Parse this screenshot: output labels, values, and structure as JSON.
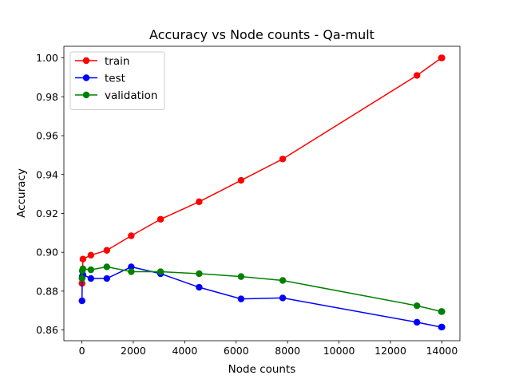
{
  "chart_data": {
    "type": "line",
    "title": "Accuracy vs Node counts - Qa-mult",
    "xlabel": "Node counts",
    "ylabel": "Accuracy",
    "xlim": [
      -700,
      14700
    ],
    "ylim": [
      0.8545,
      1.006
    ],
    "xticks": [
      0,
      2000,
      4000,
      6000,
      8000,
      10000,
      12000,
      14000
    ],
    "yticks": [
      0.86,
      0.88,
      0.9,
      0.92,
      0.94,
      0.96,
      0.98,
      1.0
    ],
    "xtick_labels": [
      "0",
      "2000",
      "4000",
      "6000",
      "8000",
      "10000",
      "12000",
      "14000"
    ],
    "ytick_labels": [
      "0.86",
      "0.88",
      "0.90",
      "0.92",
      "0.94",
      "0.96",
      "0.98",
      "1.00"
    ],
    "grid": false,
    "legend_position": "top-left",
    "series": [
      {
        "name": "train",
        "color": "#ff0000",
        "x": [
          5,
          15,
          40,
          350,
          970,
          1920,
          3060,
          4560,
          6190,
          7810,
          13030,
          13980,
          14000
        ],
        "y": [
          0.884,
          0.887,
          0.8965,
          0.8985,
          0.901,
          0.9085,
          0.917,
          0.926,
          0.937,
          0.948,
          0.991,
          1.0,
          1.0
        ]
      },
      {
        "name": "test",
        "color": "#0000ff",
        "x": [
          5,
          15,
          40,
          350,
          970,
          1920,
          3060,
          4560,
          6190,
          7810,
          13030,
          13980,
          14000
        ],
        "y": [
          0.875,
          0.8875,
          0.8885,
          0.8865,
          0.8865,
          0.8925,
          0.889,
          0.882,
          0.876,
          0.8765,
          0.864,
          0.8615,
          0.8615
        ]
      },
      {
        "name": "validation",
        "color": "#008000",
        "x": [
          5,
          15,
          40,
          350,
          970,
          1920,
          3060,
          4560,
          6190,
          7810,
          13030,
          13980,
          14000
        ],
        "y": [
          0.8865,
          0.8905,
          0.8915,
          0.891,
          0.8925,
          0.89,
          0.89,
          0.889,
          0.8875,
          0.8855,
          0.8725,
          0.8695,
          0.8695
        ]
      }
    ]
  }
}
